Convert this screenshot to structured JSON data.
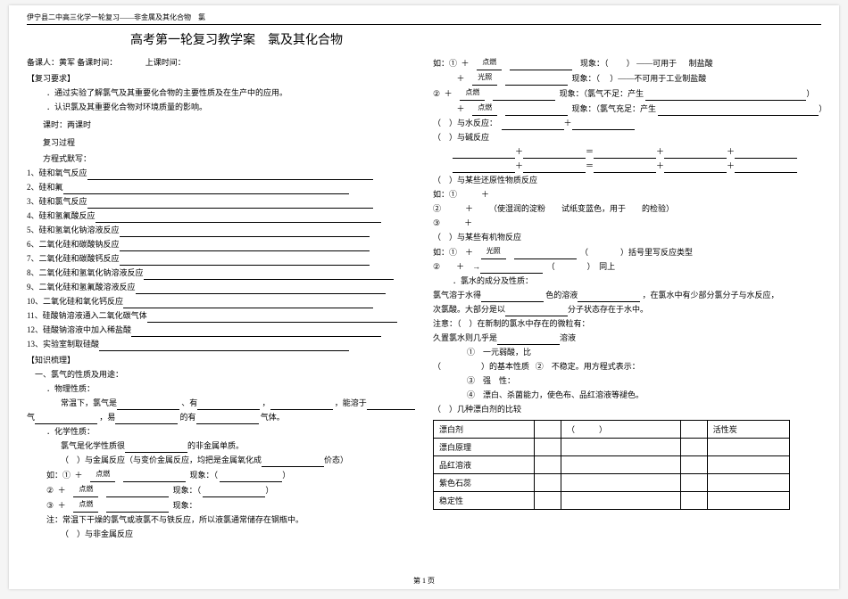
{
  "header": "伊宁县二中高三化学一轮复习——非金属及其化合物　氯",
  "title": "高考第一轮复习教学案　氯及其化合物",
  "lecturer_row": "备课人：黄军  备课时间：　　　　上课时间：",
  "section_req": "【复习要求】",
  "req1": "．通过实验了解氯气及其重要化合物的主要性质及在生产中的应用。",
  "req2": "．认识氯及其重要化合物对环境质量的影响。",
  "class_hours": "　　课时：两课时",
  "review_proc": "　　复习过程",
  "formula_default": "　　方程式默写：",
  "lines": [
    "1、硅和氧气反应",
    "2、硅和氟",
    "3、硅和氯气反应",
    "4、硅和氢氟酸反应",
    "5、硅和氢氧化钠溶液反应",
    "6、二氧化硅和碳酸钠反应",
    "7、二氧化硅和碳酸钙反应",
    "8、二氧化硅和氢氧化钠溶液反应",
    "9、二氧化硅和氢氟酸溶液反应",
    "10、二氧化硅和氧化钙反应",
    "11、硅酸钠溶液通入二氧化碳气体",
    "12、硅酸钠溶液中加入稀盐酸",
    "13、实验室制取硅酸"
  ],
  "knowledge": "【知识梳理】",
  "h1": "　一、氯气的性质及用途：",
  "phys_h": "．物理性质：",
  "phys_row1_a": "常温下，氯气是",
  "phys_row1_b": "、有",
  "phys_row1_c": "，",
  "phys_row1_d": "，能溶于",
  "phys_row1_e": "，比空",
  "phys_row2_a": "气",
  "phys_row2_b": "，易",
  "phys_row2_c": "的有",
  "phys_row2_d": "气体。",
  "chem_h": "．化学性质：",
  "chem_row1_a": "氯气是化学性质很",
  "chem_row1_b": "的非金属单质。",
  "metal_h_a": "（　）与金属反应（与变价金属反应，均把是金属氧化成",
  "metal_h_b": "价态）",
  "eg": "如：①",
  "plus": "＋",
  "cond_fire": "点燃",
  "cond_light": "光照",
  "phen": "现象：（",
  "phen_end": "）",
  "note_iron": "注：常温下干燥的氯气或液氯不与铁反应，所以液氯通常储存在钢瓶中。",
  "nonmetal_h": "（　）与非金属反应",
  "phen_suf1": "——可用于",
  "phen_suf1b": "制盐酸",
  "phen_suf2": "——不可用于工业制盐酸",
  "phen3": "现象：（氯气不足：产生",
  "phen4": "现象：（氯气充足：产生",
  "water_h": "（　）与水反应：",
  "alkali_h": "（　）与碱反应",
  "redox_h": "（　）与某些还原性物质反应",
  "redox_eg1": "如：①　　　＋",
  "redox_eg2_a": "②　　　＋",
  "redox_eg2_b": "（使湿润的淀粉　　试纸变蓝色，用于　　的检验）",
  "redox_eg3": "③　　　＋",
  "org_h": "（　）与某些有机物反应",
  "org_eg1_a": "如：①　＋",
  "org_eg1_b": "（　　　　）括号里写反应类型",
  "org_eg2_a": "②　　＋　→",
  "org_eg2_b": "（　　　　）　同上",
  "hclo_h": "．氯水的成分及性质：",
  "hclo_r1_a": "氯气溶于水得",
  "hclo_r1_b": "色的溶液",
  "hclo_r1_c": "，在氯水中有少部分氯分子与水反应，",
  "hclo_r2_a": "次氯酸。大部分是以",
  "hclo_r2_b": "分子状态存在于水中。",
  "note_h": "注意：（　）在新制的氯水中存在的微粒有：",
  "stale_a": "久置氯水则几乎是",
  "stale_b": "溶液",
  "props_h": "（　　　　　）的基本性质",
  "p1": "①　一元弱酸，比",
  "p2": "②　不稳定。用方程式表示：",
  "p3": "③　强　性：",
  "p4": "④　漂白、杀菌能力，使色布、品红溶液等褪色。",
  "tbl_h": "（　）几种漂白剂的比较",
  "tbl_rows": [
    "漂白剂",
    "漂白原理",
    "品红溶液",
    "紫色石蕊",
    "稳定性"
  ],
  "tbl_col_blank": "（　　　）",
  "tbl_col_carbon": "活性炭",
  "footer": "第 1 页"
}
